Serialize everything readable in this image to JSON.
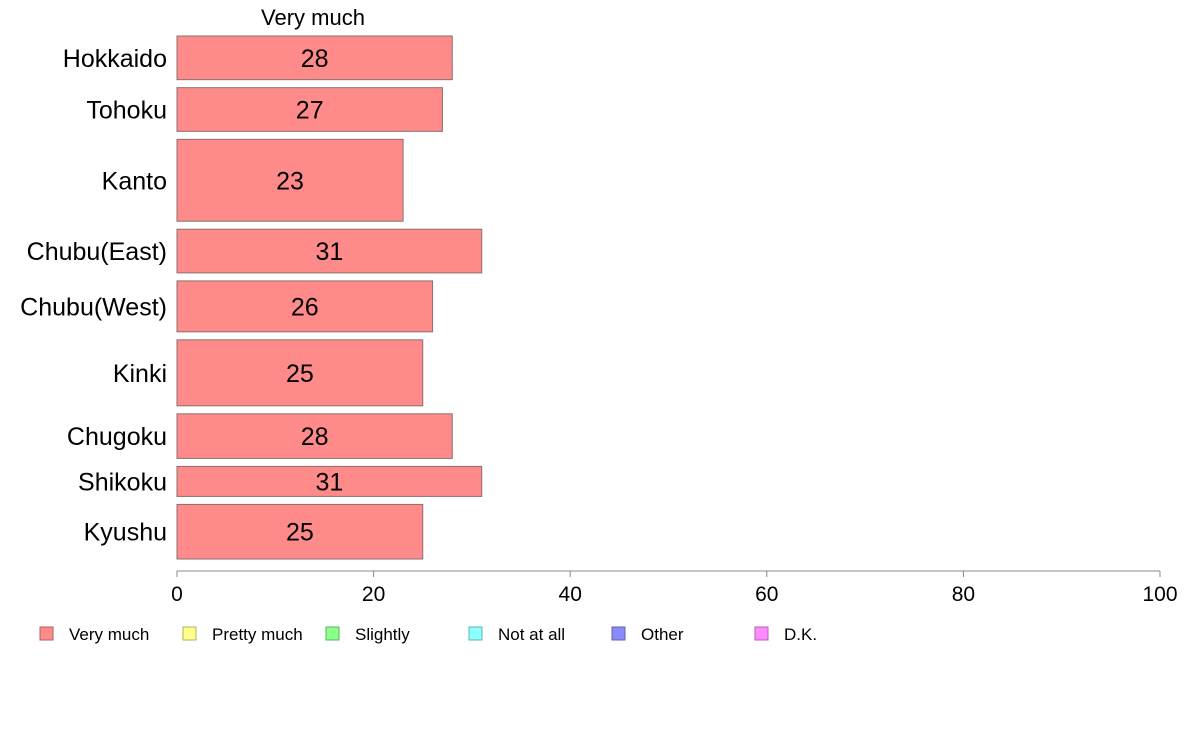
{
  "chart_data": {
    "type": "bar",
    "orientation": "horizontal",
    "stacked": true,
    "header": "Very much",
    "categories": [
      "Hokkaido",
      "Tohoku",
      "Kanto",
      "Chubu(East)",
      "Chubu(West)",
      "Kinki",
      "Chugoku",
      "Shikoku",
      "Kyushu"
    ],
    "category_weights": [
      0.96,
      0.96,
      1.8,
      0.96,
      1.12,
      1.45,
      0.98,
      0.66,
      1.2
    ],
    "series": [
      {
        "name": "Very much",
        "color": "#ff8a8a",
        "values": [
          28,
          27,
          23,
          31,
          26,
          25,
          28,
          31,
          25
        ]
      }
    ],
    "data_labels": [
      "28",
      "27",
      "23",
      "31",
      "26",
      "25",
      "28",
      "31",
      "25"
    ],
    "xlim": [
      0,
      100
    ],
    "x_ticks": [
      "0",
      "20",
      "40",
      "60",
      "80",
      "100"
    ],
    "x_tick_values": [
      0,
      20,
      40,
      60,
      80,
      100
    ],
    "bar_edge_color": "#8a6f6f",
    "axis_color": "#888888",
    "legend": {
      "placement": "bottom",
      "items": [
        {
          "label": "Very much",
          "color": "#ff8a8a",
          "border": "#b06060"
        },
        {
          "label": "Pretty much",
          "color": "#ffff8a",
          "border": "#b0b060"
        },
        {
          "label": "Slightly",
          "color": "#8aff8a",
          "border": "#60b060"
        },
        {
          "label": "Not at all",
          "color": "#8affff",
          "border": "#60b0b0"
        },
        {
          "label": "Other",
          "color": "#8a8aff",
          "border": "#6060b0"
        },
        {
          "label": "D.K.",
          "color": "#ff8aff",
          "border": "#b060b0"
        }
      ]
    }
  }
}
